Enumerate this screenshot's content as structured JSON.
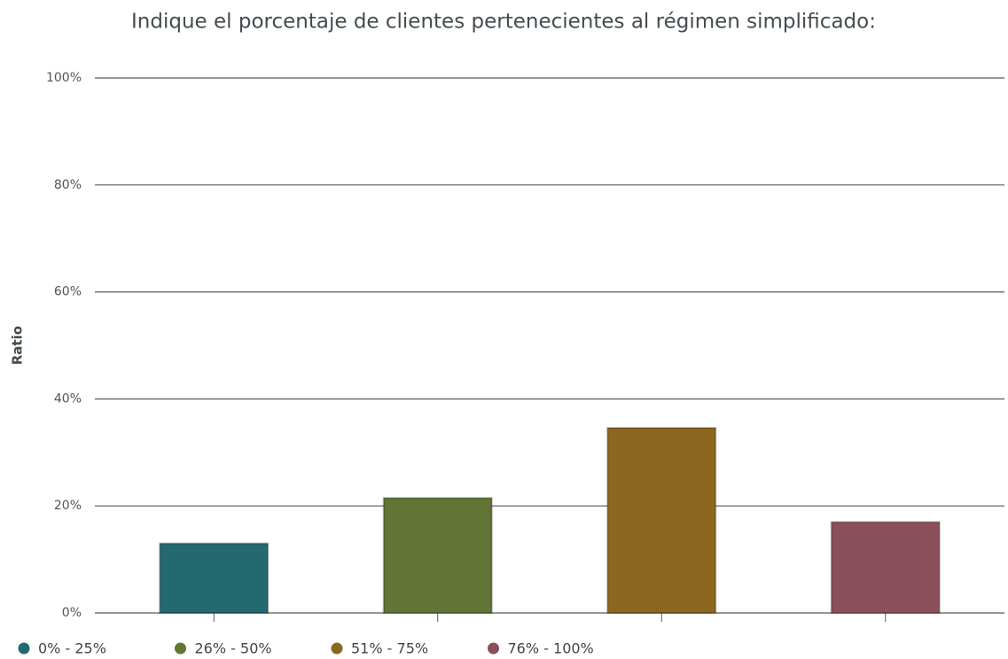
{
  "chart_data": {
    "type": "bar",
    "title": "Indique el porcentaje de clientes pertenecientes al régimen simplificado:",
    "y_label": "Ratio",
    "categories": [
      "0% - 25%",
      "26% - 50%",
      "51% - 75%",
      "76% - 100%"
    ],
    "values": [
      13,
      21.5,
      34.6,
      17
    ],
    "colors": [
      "#246870",
      "#627436",
      "#8b6720",
      "#8b4f5b"
    ],
    "ylim": [
      0,
      100
    ],
    "yticks": [
      {
        "value": 0,
        "label": "0%"
      },
      {
        "value": 20,
        "label": "20%"
      },
      {
        "value": 40,
        "label": "40%"
      },
      {
        "value": 60,
        "label": "60%"
      },
      {
        "value": 80,
        "label": "80%"
      },
      {
        "value": 100,
        "label": "100%"
      }
    ],
    "grid": true,
    "legend": "bottom"
  }
}
